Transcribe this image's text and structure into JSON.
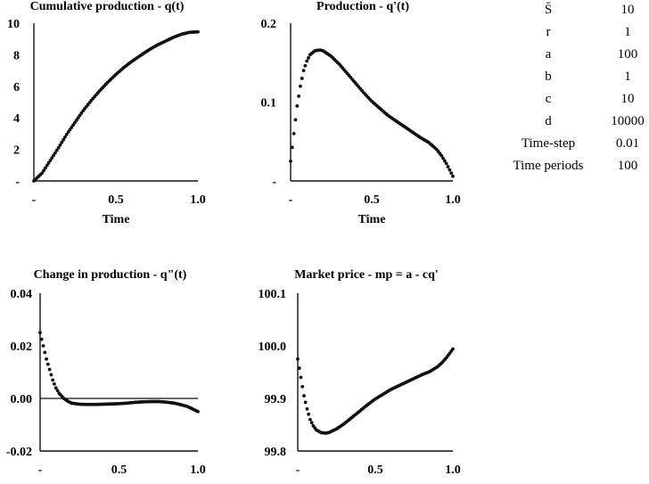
{
  "chart_data": [
    {
      "type": "scatter",
      "title": "Cumulative production - q(t)",
      "xlabel": "Time",
      "ylabel": "",
      "xlim": [
        0,
        1
      ],
      "ylim": [
        0,
        10
      ],
      "x_ticks": [
        "-",
        "0.5",
        "1.0"
      ],
      "y_ticks": [
        "-",
        "2",
        "4",
        "6",
        "8",
        "10"
      ],
      "series": [
        {
          "x": [
            0,
            0.05,
            0.1,
            0.15,
            0.2,
            0.25,
            0.3,
            0.35,
            0.4,
            0.45,
            0.5,
            0.55,
            0.6,
            0.65,
            0.7,
            0.75,
            0.8,
            0.85,
            0.9,
            0.95,
            1.0
          ],
          "y": [
            0,
            0.5,
            1.3,
            2.1,
            2.95,
            3.7,
            4.45,
            5.1,
            5.7,
            6.25,
            6.75,
            7.2,
            7.6,
            7.95,
            8.3,
            8.6,
            8.85,
            9.1,
            9.3,
            9.42,
            9.45
          ]
        }
      ]
    },
    {
      "type": "scatter",
      "title": "Production - q'(t)",
      "xlabel": "Time",
      "ylabel": "",
      "xlim": [
        0,
        1
      ],
      "ylim": [
        0,
        0.2
      ],
      "x_ticks": [
        "-",
        "0.5",
        "1.0"
      ],
      "y_ticks": [
        "-",
        "0.1",
        "0.2"
      ],
      "series": [
        {
          "x": [
            0,
            0.02,
            0.04,
            0.06,
            0.08,
            0.1,
            0.12,
            0.15,
            0.18,
            0.2,
            0.25,
            0.3,
            0.35,
            0.4,
            0.45,
            0.5,
            0.55,
            0.6,
            0.65,
            0.7,
            0.75,
            0.8,
            0.85,
            0.9,
            0.93,
            0.96,
            0.98,
            1.0
          ],
          "y": [
            0.025,
            0.06,
            0.095,
            0.12,
            0.14,
            0.152,
            0.16,
            0.165,
            0.166,
            0.165,
            0.158,
            0.148,
            0.136,
            0.124,
            0.112,
            0.101,
            0.092,
            0.083,
            0.076,
            0.069,
            0.062,
            0.055,
            0.049,
            0.04,
            0.032,
            0.022,
            0.014,
            0.006
          ]
        }
      ]
    },
    {
      "type": "scatter",
      "title": "Change in production - q\"(t)",
      "xlabel": "Time",
      "ylabel": "",
      "xlim": [
        0,
        1
      ],
      "ylim": [
        -0.02,
        0.04
      ],
      "x_ticks": [
        "-",
        "0.5",
        "1.0"
      ],
      "y_ticks": [
        "-0.02",
        "0.00",
        "0.02",
        "0.04"
      ],
      "series": [
        {
          "x": [
            0,
            0.02,
            0.04,
            0.06,
            0.08,
            0.1,
            0.12,
            0.15,
            0.18,
            0.2,
            0.25,
            0.3,
            0.35,
            0.4,
            0.45,
            0.5,
            0.55,
            0.6,
            0.65,
            0.7,
            0.75,
            0.8,
            0.85,
            0.9,
            0.93,
            0.96,
            1.0
          ],
          "y": [
            0.025,
            0.02,
            0.015,
            0.011,
            0.007,
            0.004,
            0.002,
            0.0,
            -0.0012,
            -0.0018,
            -0.0022,
            -0.0023,
            -0.0023,
            -0.0022,
            -0.0021,
            -0.002,
            -0.0018,
            -0.0015,
            -0.0013,
            -0.0012,
            -0.0012,
            -0.0014,
            -0.0018,
            -0.0025,
            -0.003,
            -0.0038,
            -0.005
          ]
        }
      ]
    },
    {
      "type": "scatter",
      "title": "Market price - mp =  a - cq'",
      "xlabel": "Time",
      "ylabel": "",
      "xlim": [
        0,
        1
      ],
      "ylim": [
        99.8,
        100.1
      ],
      "x_ticks": [
        "-",
        "0.5",
        "1.0"
      ],
      "y_ticks": [
        "99.8",
        "99.9",
        "100.0",
        "100.1"
      ],
      "series": [
        {
          "x": [
            0,
            0.02,
            0.04,
            0.06,
            0.08,
            0.1,
            0.12,
            0.15,
            0.18,
            0.2,
            0.25,
            0.3,
            0.35,
            0.4,
            0.45,
            0.5,
            0.55,
            0.6,
            0.65,
            0.7,
            0.75,
            0.8,
            0.85,
            0.9,
            0.93,
            0.96,
            0.98,
            1.0
          ],
          "y": [
            99.975,
            99.94,
            99.905,
            99.88,
            99.86,
            99.848,
            99.84,
            99.835,
            99.834,
            99.835,
            99.842,
            99.852,
            99.864,
            99.876,
            99.888,
            99.899,
            99.908,
            99.917,
            99.924,
            99.931,
            99.938,
            99.945,
            99.951,
            99.96,
            99.968,
            99.978,
            99.986,
            99.994
          ]
        }
      ]
    }
  ],
  "parameters": [
    {
      "name": "S̄",
      "value": "10"
    },
    {
      "name": "r",
      "value": "1"
    },
    {
      "name": "a",
      "value": "100"
    },
    {
      "name": "b",
      "value": "1"
    },
    {
      "name": "c",
      "value": "10"
    },
    {
      "name": "d",
      "value": "10000"
    },
    {
      "name": "Time-step",
      "value": "0.01"
    },
    {
      "name": "Time periods",
      "value": "100"
    }
  ]
}
